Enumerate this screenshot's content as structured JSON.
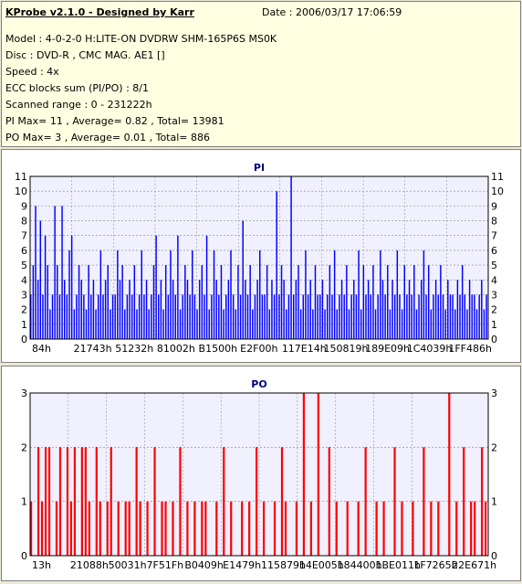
{
  "header": {
    "title": "KProbe v2.1.0 - Designed by Karr",
    "date": "Date : 2006/03/17 17:06:59",
    "lines": [
      "Model : 4-0-2-0 H:LITE-ON DVDRW SHM-165P6S MS0K",
      "Disc : DVD-R , CMC MAG. AE1 []",
      "Speed : 4x",
      "ECC blocks sum (PI/PO) : 8/1",
      "Scanned range : 0 - 231222h",
      "PI Max= 11 , Average= 0.82 , Total= 13981",
      "PO Max= 3 , Average= 0.01 , Total= 886"
    ]
  },
  "colors": {
    "pi": "#0000ff",
    "po": "#ff0000",
    "plot_bg": "#f0f0ff",
    "grid": "#888888"
  },
  "chart_data": [
    {
      "type": "bar",
      "title": "PI",
      "xlabel": "",
      "ylabel": "",
      "ylim": [
        0,
        11
      ],
      "yticks": [
        0,
        1,
        2,
        3,
        4,
        5,
        6,
        7,
        8,
        9,
        10,
        11
      ],
      "xtick_labels": [
        "84h",
        "21743h",
        "51232h",
        "81002h",
        "B1500h",
        "E2F00h",
        "117E14h",
        "150819h",
        "189E09h",
        "1C4039h",
        "1FF486h"
      ],
      "grid": true,
      "series": [
        {
          "values": [
            3,
            5,
            9,
            4,
            8,
            3,
            7,
            5,
            2,
            3,
            9,
            5,
            3,
            9,
            4,
            3,
            6,
            7,
            2,
            3,
            5,
            4,
            3,
            2,
            5,
            3,
            4,
            2,
            3,
            6,
            3,
            4,
            5,
            2,
            3,
            3,
            6,
            4,
            5,
            2,
            3,
            4,
            3,
            5,
            2,
            3,
            6,
            3,
            4,
            2,
            3,
            5,
            7,
            3,
            4,
            2,
            5,
            3,
            6,
            4,
            3,
            7,
            2,
            3,
            5,
            4,
            3,
            6,
            3,
            2,
            4,
            5,
            3,
            7,
            2,
            3,
            6,
            4,
            3,
            5,
            2,
            3,
            4,
            6,
            3,
            2,
            5,
            3,
            8,
            4,
            3,
            5,
            2,
            3,
            4,
            6,
            3,
            3,
            5,
            2,
            4,
            3,
            10,
            3,
            5,
            4,
            2,
            3,
            11,
            3,
            4,
            5,
            2,
            3,
            6,
            3,
            4,
            2,
            5,
            3,
            3,
            4,
            2,
            3,
            5,
            3,
            6,
            2,
            3,
            4,
            3,
            5,
            2,
            3,
            4,
            3,
            6,
            2,
            5,
            3,
            4,
            3,
            5,
            2,
            3,
            6,
            4,
            3,
            5,
            2,
            4,
            3,
            6,
            3,
            2,
            5,
            3,
            4,
            3,
            5,
            2,
            3,
            4,
            6,
            3,
            5,
            2,
            3,
            4,
            3,
            5,
            3,
            2,
            4,
            3,
            3,
            2,
            4,
            3,
            5,
            3,
            2,
            4,
            3,
            3,
            2,
            3,
            4,
            2,
            3
          ]
        }
      ]
    },
    {
      "type": "bar",
      "title": "PO",
      "xlabel": "",
      "ylabel": "",
      "ylim": [
        0,
        3
      ],
      "yticks": [
        0,
        1,
        2,
        3
      ],
      "xtick_labels": [
        "13h",
        "21088h",
        "50031h",
        "7F51Fh",
        "B0409h",
        "E1479h",
        "115879h",
        "14E005h",
        "184400h",
        "1BE011h",
        "1F7265h",
        "22E671h"
      ],
      "grid": true,
      "series": [
        {
          "values": [
            1,
            0,
            2,
            1,
            2,
            2,
            0,
            1,
            2,
            0,
            2,
            1,
            2,
            0,
            2,
            2,
            1,
            0,
            2,
            1,
            0,
            1,
            2,
            0,
            1,
            0,
            1,
            1,
            0,
            2,
            1,
            0,
            1,
            0,
            2,
            0,
            1,
            1,
            0,
            1,
            0,
            2,
            0,
            1,
            0,
            1,
            0,
            1,
            1,
            0,
            0,
            1,
            0,
            2,
            0,
            1,
            0,
            0,
            1,
            0,
            1,
            0,
            2,
            0,
            1,
            0,
            0,
            1,
            0,
            2,
            1,
            0,
            0,
            1,
            0,
            3,
            0,
            1,
            0,
            3,
            0,
            0,
            2,
            0,
            1,
            0,
            0,
            1,
            0,
            0,
            1,
            0,
            2,
            0,
            0,
            1,
            0,
            1,
            0,
            0,
            2,
            0,
            1,
            0,
            0,
            1,
            0,
            0,
            2,
            0,
            1,
            0,
            1,
            0,
            0,
            3,
            0,
            1,
            0,
            2,
            0,
            1,
            1,
            0,
            2,
            1
          ]
        }
      ]
    }
  ]
}
